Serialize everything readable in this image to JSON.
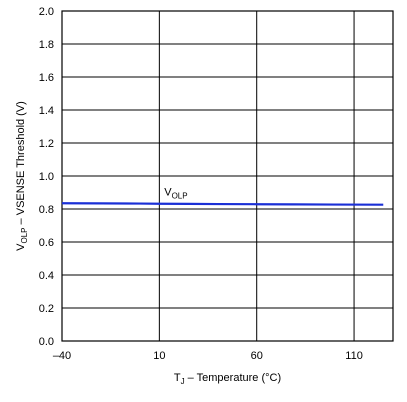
{
  "chart_data": {
    "type": "line",
    "title": "",
    "xlabel": {
      "main": "T",
      "sub": "J",
      "rest": " – Temperature (°C)"
    },
    "ylabel": {
      "main": "V",
      "sub": "OLP",
      "rest": " – VSENSE Threshold (V)"
    },
    "xlim": [
      -40,
      130
    ],
    "ylim": [
      0,
      2.0
    ],
    "xticks": [
      -40,
      10,
      60,
      110
    ],
    "xtick_labels": [
      "–40",
      "10",
      "60",
      "110"
    ],
    "yticks": [
      0,
      0.2,
      0.4,
      0.6,
      0.8,
      1.0,
      1.2,
      1.4,
      1.6,
      1.8,
      2.0
    ],
    "ytick_labels": [
      "0.0",
      "0.2",
      "0.4",
      "0.6",
      "0.8",
      "1.0",
      "1.2",
      "1.4",
      "1.6",
      "1.8",
      "2.0"
    ],
    "grid": true,
    "series": [
      {
        "name": {
          "main": "V",
          "sub": "OLP"
        },
        "color": "#1a2fd6",
        "x": [
          -40,
          -20,
          0,
          10,
          25,
          40,
          60,
          80,
          100,
          125
        ],
        "y": [
          0.835,
          0.834,
          0.833,
          0.832,
          0.831,
          0.83,
          0.829,
          0.828,
          0.827,
          0.826
        ]
      }
    ]
  }
}
